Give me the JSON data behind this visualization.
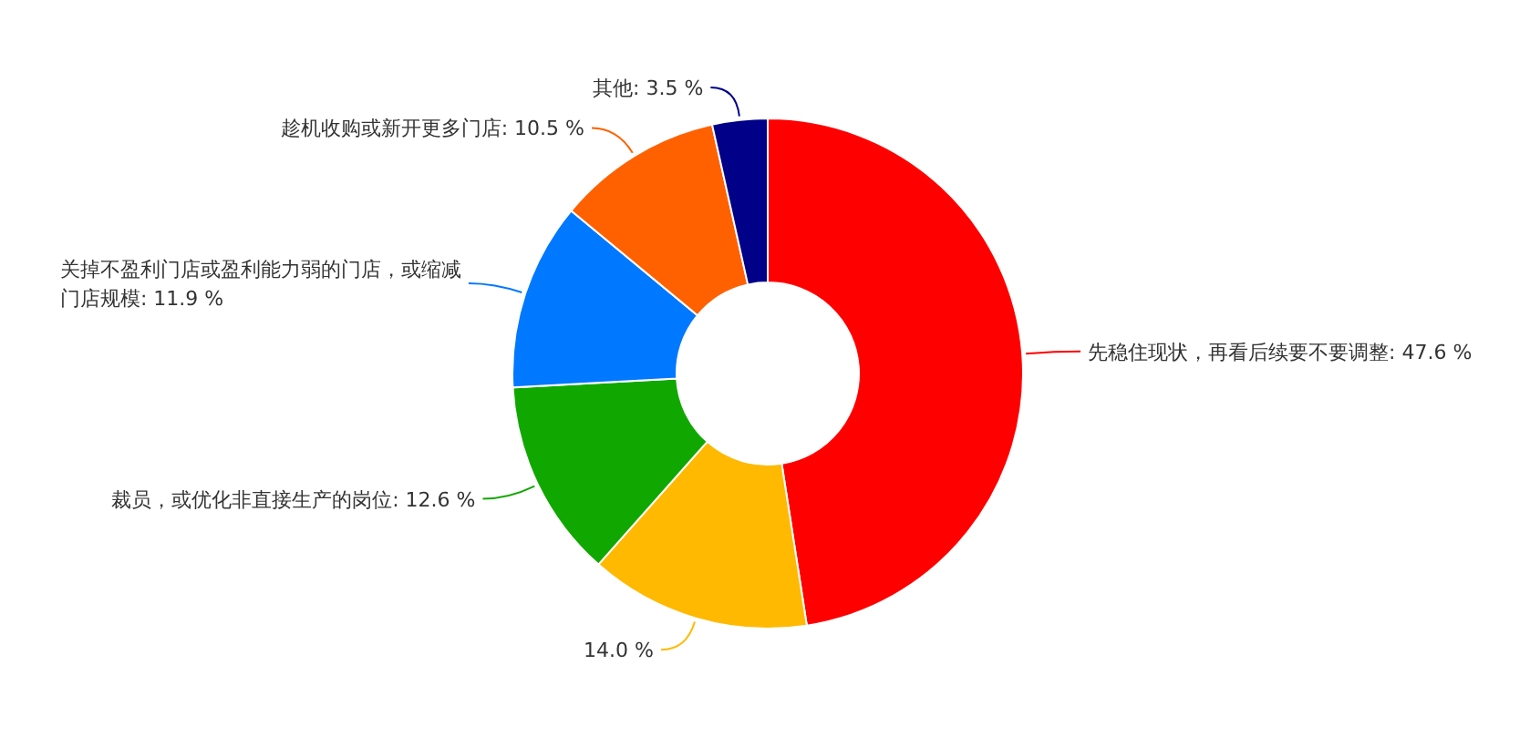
{
  "chart_data": {
    "type": "donut",
    "categories": [
      "先稳住现状，再看后续要不要调整",
      null,
      "裁员，或优化非直接生产的岗位",
      "关掉不盈利门店或盈利能力弱的门店，或缩减门店规模",
      "趁机收购或新开更多门店",
      "其他"
    ],
    "values": [
      47.6,
      14.0,
      12.6,
      11.9,
      10.5,
      3.5
    ],
    "value_labels": [
      "47.6 %",
      "14.0 %",
      "12.6 %",
      "11.9 %",
      "10.5 %",
      "3.5 %"
    ],
    "colors": [
      "#ff0000",
      "#ffb900",
      "#10a800",
      "#0078ff",
      "#ff6100",
      "#000088"
    ]
  }
}
